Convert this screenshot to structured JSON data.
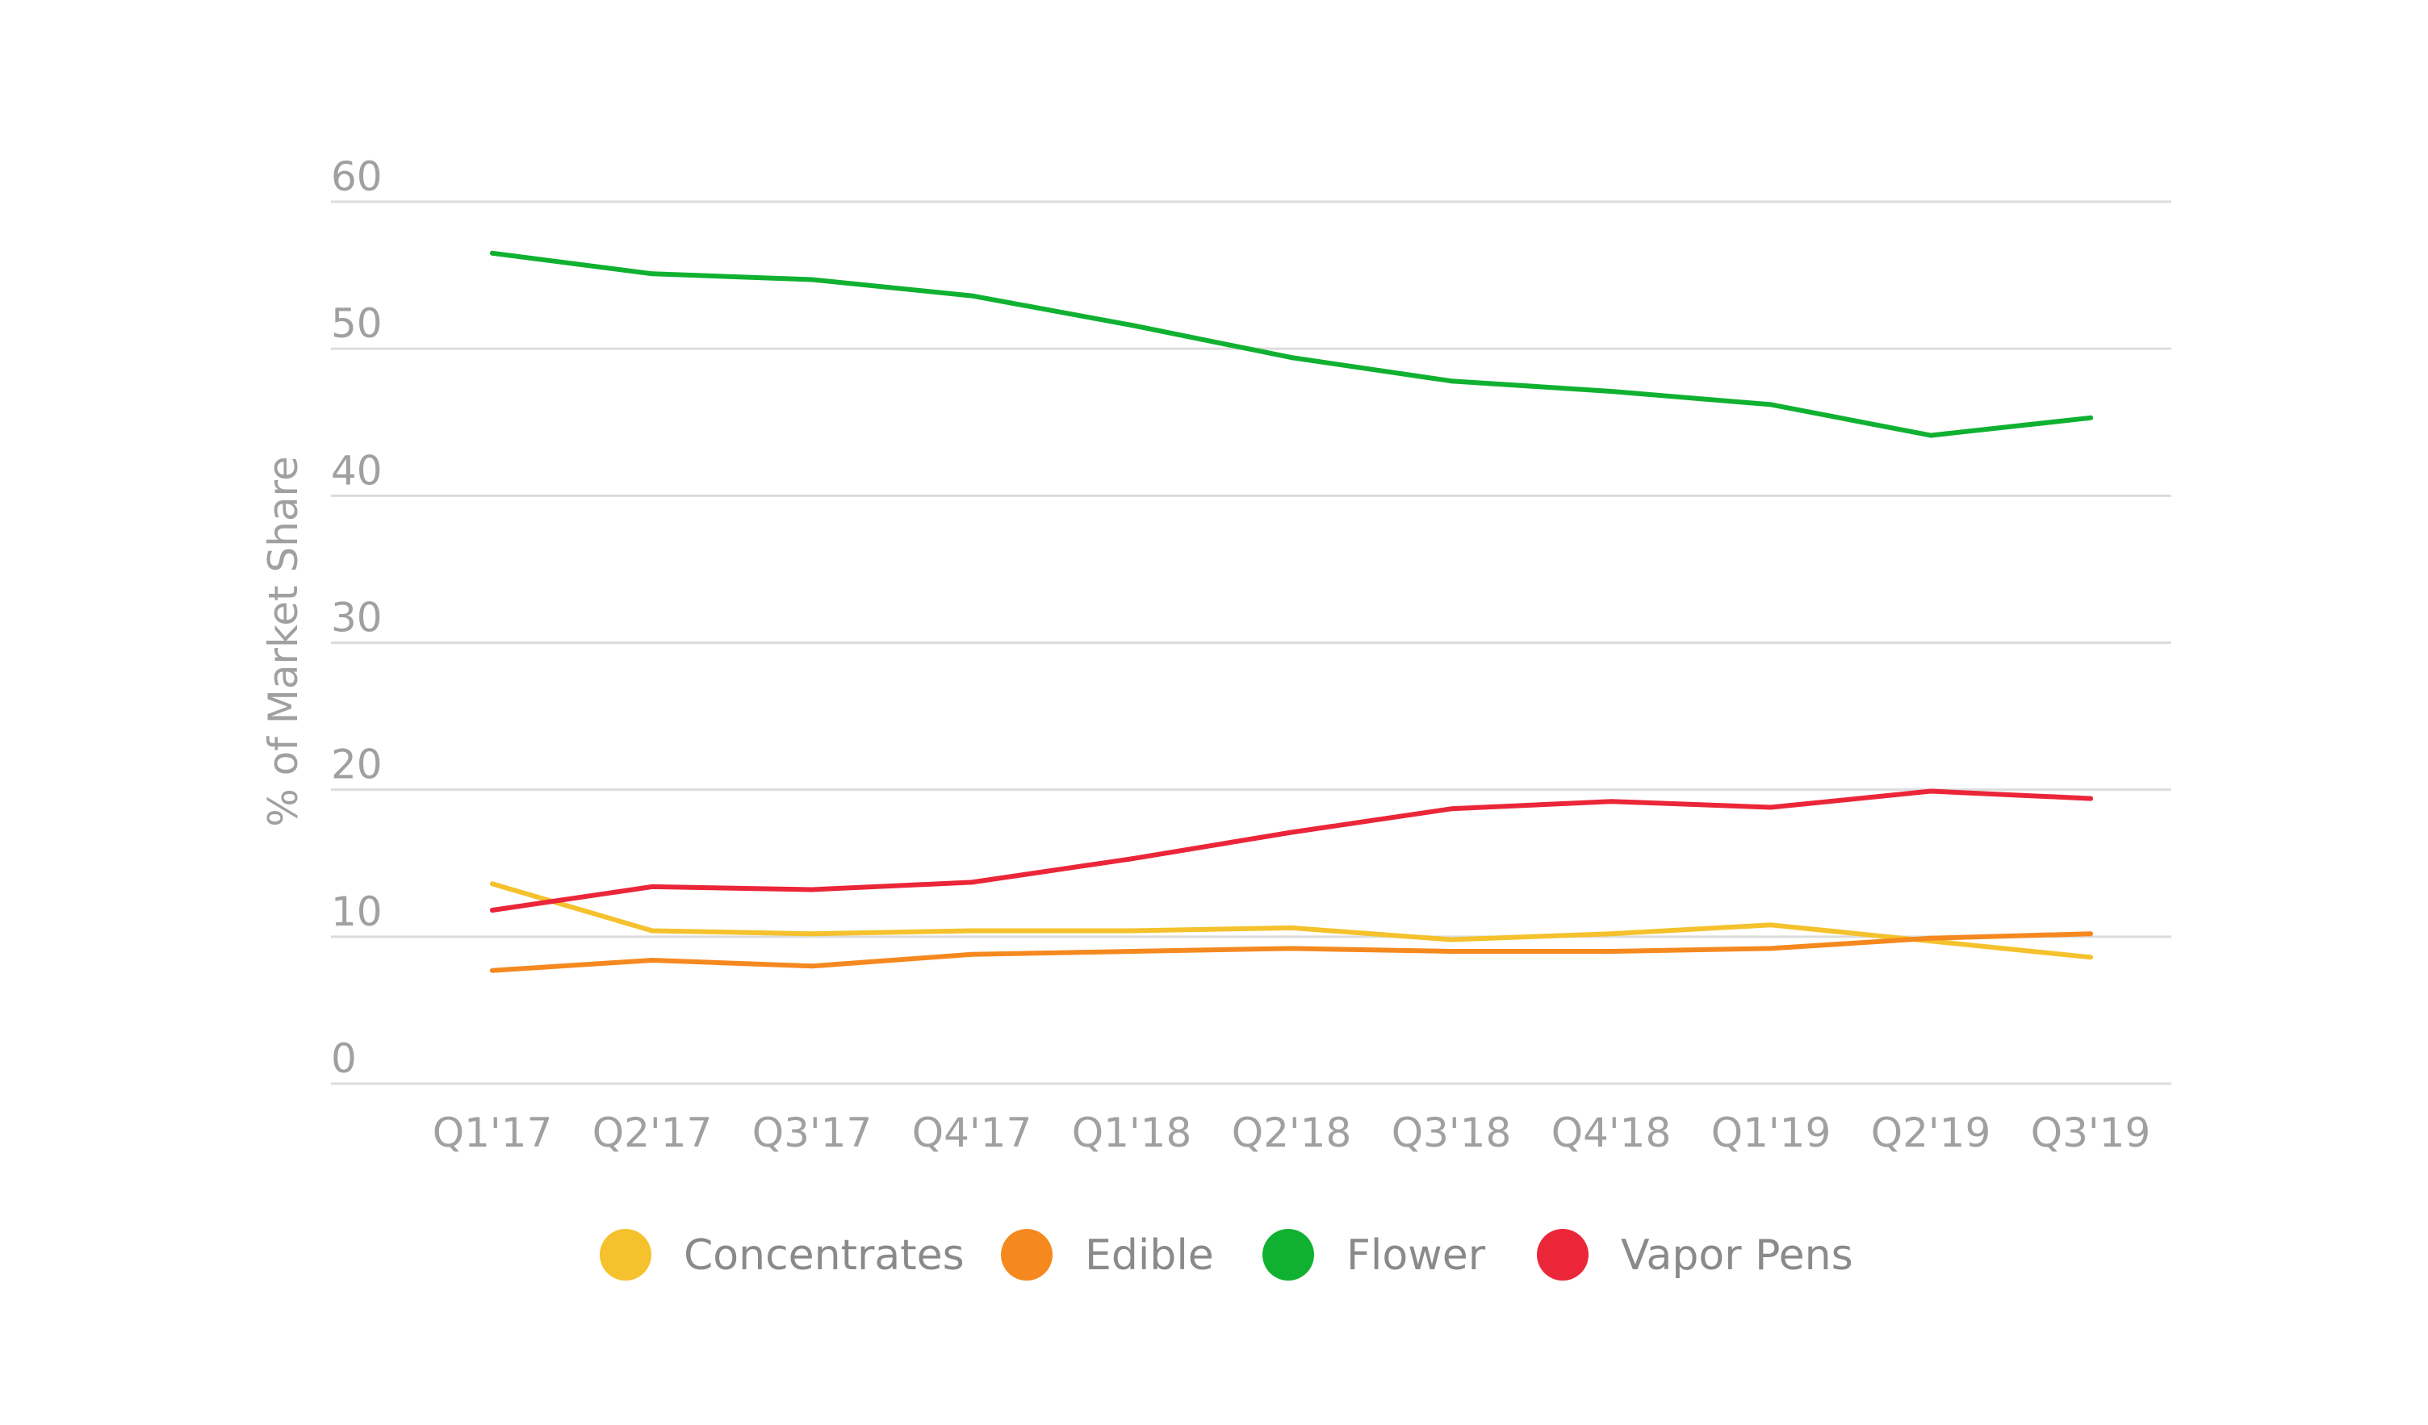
{
  "chart_data": {
    "type": "line",
    "title": "",
    "xlabel": "",
    "ylabel": "% of Market Share",
    "categories": [
      "Q1'17",
      "Q2'17",
      "Q3'17",
      "Q4'17",
      "Q1'18",
      "Q2'18",
      "Q3'18",
      "Q4'18",
      "Q1'19",
      "Q2'19",
      "Q3'19"
    ],
    "ylim": [
      0,
      60
    ],
    "yticks": [
      "0",
      "10",
      "20",
      "30",
      "40",
      "50",
      "60"
    ],
    "grid": true,
    "legend_position": "bottom",
    "series": [
      {
        "name": "Concentrates",
        "color": "#f5c12c",
        "values": [
          13.6,
          10.4,
          10.2,
          10.4,
          10.4,
          10.6,
          9.8,
          10.2,
          10.8,
          9.7,
          8.6
        ]
      },
      {
        "name": "Edible",
        "color": "#f5891f",
        "values": [
          7.7,
          8.4,
          8.0,
          8.8,
          9.0,
          9.2,
          9.0,
          9.0,
          9.2,
          9.9,
          10.2
        ]
      },
      {
        "name": "Flower",
        "color": "#10b131",
        "values": [
          56.5,
          55.1,
          54.7,
          53.6,
          51.6,
          49.4,
          47.8,
          47.1,
          46.2,
          44.1,
          45.3
        ]
      },
      {
        "name": "Vapor Pens",
        "color": "#eb2638",
        "values": [
          11.8,
          13.4,
          13.2,
          13.7,
          15.3,
          17.1,
          18.7,
          19.2,
          18.8,
          19.9,
          19.4
        ]
      }
    ]
  }
}
